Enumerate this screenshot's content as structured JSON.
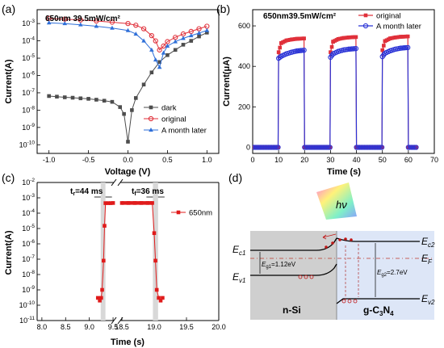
{
  "figure": {
    "panels": {
      "a": "(a)",
      "b": "(b)",
      "c": "(c)",
      "d": "(d)"
    }
  },
  "chart_data": [
    {
      "id": "a",
      "type": "line",
      "title": "650nm 39.5mW/cm²",
      "xlabel": "Voltage (V)",
      "ylabel": "Current(A)",
      "xlim": [
        -1.15,
        1.15
      ],
      "ylim_log10": [
        -10.5,
        -2.2
      ],
      "y_scale": "log",
      "xticks": [
        -1.0,
        -0.5,
        0.0,
        0.5,
        1.0
      ],
      "xtick_labels": [
        "-1.0",
        "-0.5",
        "0.0",
        "0.5",
        "1.0"
      ],
      "yticks_exp": [
        -10,
        -9,
        -8,
        -7,
        -6,
        -5,
        -4,
        -3
      ],
      "legend_position": "bottom-right",
      "series": [
        {
          "name": "dark",
          "color": "#4d4d4d",
          "marker": "square",
          "x": [
            -1.0,
            -0.9,
            -0.8,
            -0.7,
            -0.6,
            -0.5,
            -0.4,
            -0.3,
            -0.2,
            -0.1,
            -0.05,
            0.0,
            0.05,
            0.1,
            0.2,
            0.3,
            0.4,
            0.5,
            0.6,
            0.7,
            0.8,
            0.9,
            1.0
          ],
          "y": [
            6.5e-08,
            6e-08,
            5.5e-08,
            5.2e-08,
            4.8e-08,
            4.5e-08,
            4e-08,
            3.5e-08,
            3e-08,
            1.5e-08,
            6e-09,
            1.5e-10,
            1e-08,
            5e-08,
            3e-07,
            1.5e-06,
            6e-06,
            1.5e-05,
            3e-05,
            6e-05,
            0.0001,
            0.00018,
            0.0003
          ]
        },
        {
          "name": "original",
          "color": "#e0303a",
          "marker": "circle",
          "x": [
            -1.0,
            -0.8,
            -0.6,
            -0.4,
            -0.2,
            0.0,
            0.1,
            0.2,
            0.3,
            0.35,
            0.4,
            0.45,
            0.5,
            0.6,
            0.7,
            0.8,
            0.9,
            1.0
          ],
          "y": [
            0.002,
            0.0018,
            0.0016,
            0.0014,
            0.0012,
            0.001,
            0.0008,
            0.0005,
            0.0002,
            0.0001,
            3e-05,
            5e-05,
            9e-05,
            0.00016,
            0.00025,
            0.00035,
            0.0005,
            0.0007
          ]
        },
        {
          "name": "A month later",
          "color": "#2f6fd8",
          "marker": "triangle",
          "x": [
            -1.0,
            -0.8,
            -0.6,
            -0.4,
            -0.2,
            0.0,
            0.1,
            0.2,
            0.3,
            0.35,
            0.4,
            0.45,
            0.5,
            0.6,
            0.7,
            0.8,
            0.9,
            1.0
          ],
          "y": [
            0.0011,
            0.001,
            0.00085,
            0.0007,
            0.00055,
            0.0004,
            0.00025,
            0.0001,
            3e-05,
            8e-06,
            3e-06,
            2e-05,
            5e-05,
            9e-05,
            0.00014,
            0.0002,
            0.00028,
            0.0004
          ]
        }
      ]
    },
    {
      "id": "b",
      "type": "line",
      "title": "650nm39.5mW/cm²",
      "xlabel": "Time (s)",
      "ylabel": "Current(μA)",
      "xlim": [
        0,
        70
      ],
      "ylim": [
        -30,
        680
      ],
      "xticks": [
        0,
        10,
        20,
        30,
        40,
        50,
        60,
        70
      ],
      "yticks": [
        0,
        200,
        400,
        600
      ],
      "legend_position": "top-right",
      "series": [
        {
          "name": "original",
          "color": "#e0303a",
          "marker": "square",
          "x": [
            0,
            9.8,
            10,
            11,
            13,
            15,
            17,
            19.8,
            20,
            29.8,
            30,
            31,
            33,
            35,
            37,
            39.8,
            40,
            49.8,
            50,
            51,
            53,
            55,
            57,
            59.8,
            60,
            63
          ],
          "y": [
            0,
            0,
            470,
            515,
            528,
            533,
            536,
            538,
            0,
            0,
            470,
            522,
            535,
            540,
            543,
            545,
            0,
            0,
            480,
            525,
            538,
            543,
            546,
            548,
            0,
            0
          ]
        },
        {
          "name": "A month later",
          "color": "#2b34d6",
          "marker": "circle",
          "x": [
            0,
            9.8,
            10,
            11,
            13,
            15,
            17,
            19.8,
            20,
            29.8,
            30,
            31,
            33,
            35,
            37,
            39.8,
            40,
            49.8,
            50,
            51,
            53,
            55,
            57,
            59.8,
            60,
            63
          ],
          "y": [
            0,
            0,
            440,
            450,
            462,
            470,
            476,
            480,
            0,
            0,
            445,
            462,
            474,
            481,
            485,
            488,
            0,
            0,
            448,
            465,
            477,
            485,
            490,
            493,
            0,
            0
          ]
        }
      ]
    },
    {
      "id": "c",
      "type": "line",
      "xlabel": "Time (s)",
      "ylabel": "Current(A)",
      "y_scale": "log",
      "ylim_log10": [
        -11,
        -2
      ],
      "xaxis_break": true,
      "xlim_segments": [
        [
          7.9,
          9.55
        ],
        [
          18.45,
          20.0
        ]
      ],
      "xticks_seg1": [
        8.0,
        8.5,
        9.0,
        9.5
      ],
      "xticks_seg2": [
        18.5,
        19.0,
        19.5,
        20.0
      ],
      "yticks_exp": [
        -11,
        -10,
        -9,
        -8,
        -7,
        -6,
        -5,
        -4,
        -3,
        -2
      ],
      "annotations": [
        "t_r=44 ms",
        "t_f=36 ms"
      ],
      "legend_position": "right",
      "series": [
        {
          "name": "650nm",
          "color": "#e01b1b",
          "marker": "square",
          "seg1": {
            "x": [
              9.18,
              9.22,
              9.25,
              9.27,
              9.3,
              9.32,
              9.34,
              9.4,
              9.45,
              9.5
            ],
            "y": [
              3e-10,
              2e-10,
              3e-10,
              1e-09,
              8e-08,
              1.5e-05,
              0.00045,
              0.00045,
              0.00045,
              0.00046
            ]
          },
          "seg2": {
            "x": [
              18.5,
              18.6,
              18.7,
              18.8,
              18.9,
              18.97,
              19.0,
              19.02,
              19.04,
              19.07,
              19.1,
              19.13
            ],
            "y": [
              0.00046,
              0.00046,
              0.00046,
              0.00046,
              0.00046,
              0.00046,
              5e-06,
              8e-08,
              1e-09,
              3e-10,
              2e-10,
              3e-10
            ]
          }
        }
      ]
    }
  ],
  "diagram_d": {
    "hv": "hν",
    "left_material": "n-Si",
    "right_material_pre": "g-C",
    "right_material_sub1": "3",
    "right_material_mid": "N",
    "right_material_sub2": "4",
    "ec1_main": "E",
    "ec1_sub": "c1",
    "ev1_main": "E",
    "ev1_sub": "v1",
    "ec2_main": "E",
    "ec2_sub": "c2",
    "ev2_main": "E",
    "ev2_sub": "v2",
    "ef_main": "E",
    "ef_sub": "F",
    "eg1_main": "E",
    "eg1_sub": "g1",
    "eg1_value": "=1.12eV",
    "eg2_main": "E",
    "eg2_sub": "g2",
    "eg2_value": "=2.7eV"
  }
}
